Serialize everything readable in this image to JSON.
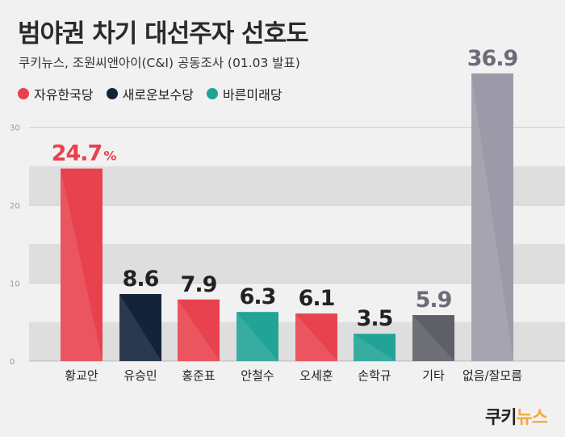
{
  "title": "범야권 차기 대선주자 선호도",
  "subtitle": "쿠키뉴스, 조원씨앤아이(C&I) 공동조사 (01.03 발표)",
  "legend": [
    {
      "label": "자유한국당",
      "color": "#e8424e"
    },
    {
      "label": "새로운보수당",
      "color": "#14233a"
    },
    {
      "label": "바른미래당",
      "color": "#21a397"
    }
  ],
  "brand": {
    "main": "쿠키",
    "accent": "뉴스"
  },
  "percent_sign": "%",
  "chart_data": {
    "type": "bar",
    "categories": [
      "황교안",
      "유승민",
      "홍준표",
      "안철수",
      "오세훈",
      "손학규",
      "기타",
      "없음/잘모름"
    ],
    "values": [
      24.7,
      8.6,
      7.9,
      6.3,
      6.1,
      3.5,
      5.9,
      36.9
    ],
    "value_labels": [
      "24.7",
      "8.6",
      "7.9",
      "6.3",
      "6.1",
      "3.5",
      "5.9",
      "36.9"
    ],
    "parties": [
      "자유한국당",
      "새로운보수당",
      "자유한국당",
      "바른미래당",
      "자유한국당",
      "바른미래당",
      "",
      ""
    ],
    "bar_colors": [
      "#e8424e",
      "#14233a",
      "#e8424e",
      "#21a397",
      "#e8424e",
      "#21a397",
      "#5f5f68",
      "#9c9aa8"
    ],
    "label_colors": [
      "#e8424e",
      "#222222",
      "#222222",
      "#222222",
      "#222222",
      "#222222",
      "#6c6c78",
      "#6c6c78"
    ],
    "yticks": [
      0,
      10,
      20,
      30
    ],
    "ylim": [
      0,
      31
    ],
    "grid": true
  }
}
